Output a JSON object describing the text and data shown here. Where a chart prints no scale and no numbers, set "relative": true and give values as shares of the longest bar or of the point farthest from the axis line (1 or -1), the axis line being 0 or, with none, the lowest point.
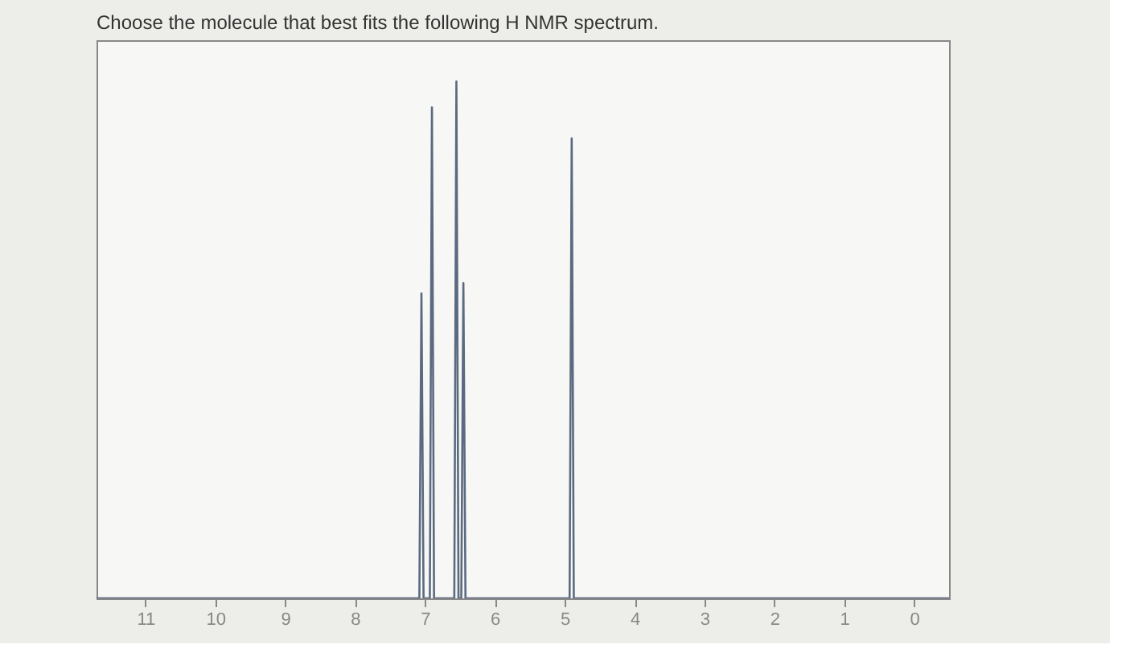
{
  "chart_data": {
    "type": "line",
    "title": "Choose the molecule that best fits the following H NMR spectrum.",
    "relative": true,
    "xlim": [
      11.7,
      -0.5
    ],
    "xticks": [
      11,
      10,
      9,
      8,
      7,
      6,
      5,
      4,
      3,
      2,
      1,
      0
    ],
    "tick_labels": "x",
    "grid": false,
    "marker": "none",
    "line_style": "solid",
    "series": [
      {
        "color": "#5a6a80",
        "x": [
          11.7,
          7.08,
          7.05,
          7.02,
          6.93,
          6.9,
          6.87,
          6.58,
          6.55,
          6.52,
          6.48,
          6.45,
          6.42,
          4.93,
          4.9,
          4.87,
          -0.5
        ],
        "values": [
          0,
          0,
          0.59,
          0,
          0,
          0.95,
          0,
          0,
          1,
          0,
          0,
          0.61,
          0,
          0,
          0.89,
          0,
          0
        ]
      }
    ]
  }
}
